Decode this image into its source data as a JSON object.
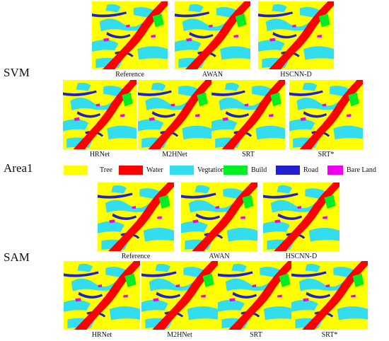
{
  "row_labels": {
    "top": "SVM",
    "middle": "Area1",
    "bottom": "SAM"
  },
  "svm": {
    "reference": "Reference",
    "awan": "AWAN",
    "hscnn": "HSCNN-D",
    "hrnet": "HRNet",
    "m2hnet": "M2HNet",
    "srt": "SRT",
    "srt_star": "SRT*"
  },
  "sam": {
    "reference": "Reference",
    "awan": "AWAN",
    "hscnn": "HSCNN-D",
    "hrnet": "HRNet",
    "m2hnet": "M2HNet",
    "srt": "SRT",
    "srt_star": "SRT*"
  },
  "legend": {
    "tree": {
      "label": "Tree",
      "color": "#ffff00"
    },
    "water": {
      "label": "Water",
      "color": "#ff0000"
    },
    "veg": {
      "label": "Vegtation",
      "color": "#33ddee"
    },
    "build": {
      "label": "Build",
      "color": "#00ee22"
    },
    "road": {
      "label": "Road",
      "color": "#2020cc"
    },
    "bare": {
      "label": "Bare Land",
      "color": "#ee00ee"
    }
  }
}
